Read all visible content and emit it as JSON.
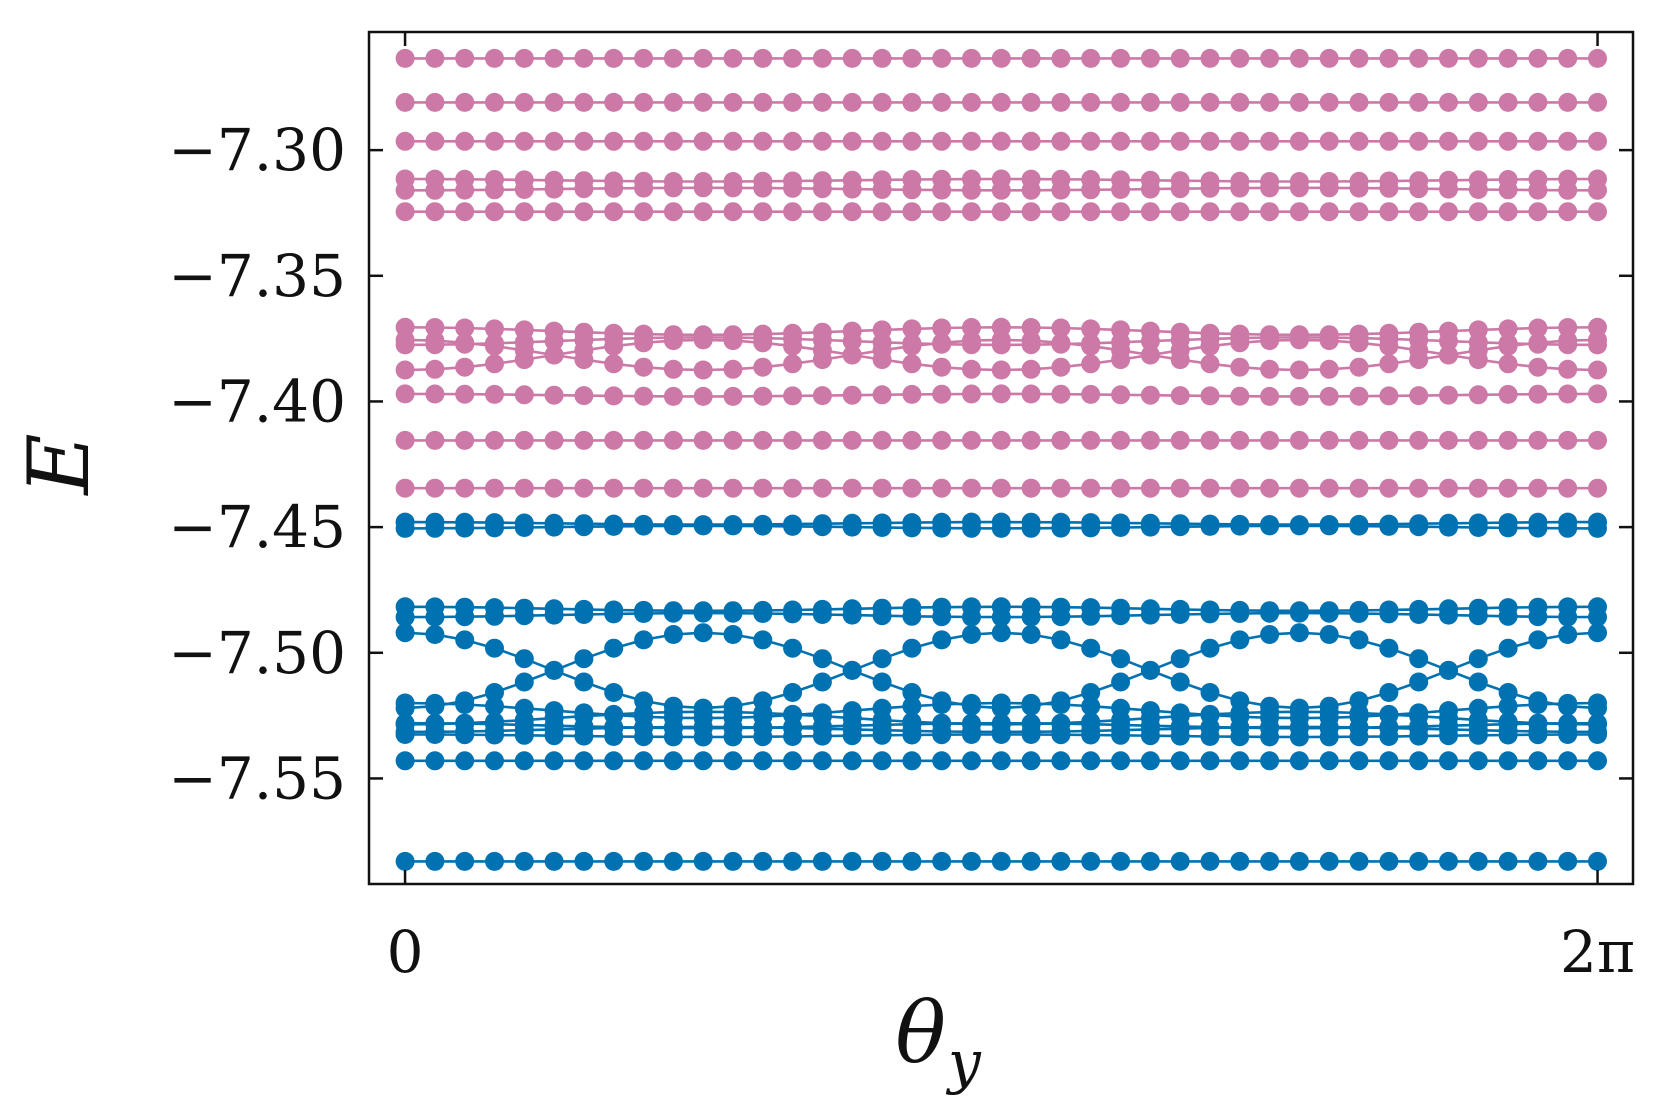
{
  "chart_data": {
    "type": "line",
    "title": "",
    "xlabel": "θ",
    "xlabel_subscript": "y",
    "ylabel": "E",
    "xlim": [
      -0.19,
      6.47
    ],
    "ylim": [
      -7.592,
      -7.253
    ],
    "x_ticks": [
      {
        "value": 0,
        "label": "0"
      },
      {
        "value": 6.2832,
        "label": "2π"
      }
    ],
    "y_ticks": [
      {
        "value": -7.3,
        "label": "−7.30"
      },
      {
        "value": -7.35,
        "label": "−7.35"
      },
      {
        "value": -7.4,
        "label": "−7.40"
      },
      {
        "value": -7.45,
        "label": "−7.45"
      },
      {
        "value": -7.5,
        "label": "−7.50"
      },
      {
        "value": -7.55,
        "label": "−7.55"
      }
    ],
    "grid": false,
    "legend": "none",
    "x_points": 41,
    "x_max": 6.2832,
    "colors": {
      "upper": "#cc79a7",
      "lower": "#0072b2"
    },
    "series": [
      {
        "group": "upper",
        "mean": -7.2635,
        "amp": 0,
        "phase": 0
      },
      {
        "group": "upper",
        "mean": -7.281,
        "amp": 0,
        "phase": 0
      },
      {
        "group": "upper",
        "mean": -7.2965,
        "amp": 0,
        "phase": 0
      },
      {
        "group": "upper",
        "mean": -7.312,
        "amp": 0.0005,
        "phase": 0
      },
      {
        "group": "upper",
        "mean": -7.3155,
        "amp": 0.0005,
        "phase": 3.1416
      },
      {
        "group": "upper",
        "mean": -7.3245,
        "amp": 0,
        "phase": 0
      },
      {
        "group": "upper",
        "mean": -7.372,
        "amp": 0.0015,
        "phase": 0
      },
      {
        "group": "upper",
        "mean": -7.376,
        "amp": 0.0015,
        "phase": 3.1416
      },
      {
        "group": "upper",
        "mean": -7.3815,
        "amp": 0.006,
        "phase": 0
      },
      {
        "group": "upper",
        "mean": -7.3815,
        "amp": 0.006,
        "phase": 3.1416
      },
      {
        "group": "upper",
        "mean": -7.3975,
        "amp": 0.0005,
        "phase": 0
      },
      {
        "group": "upper",
        "mean": -7.4155,
        "amp": 0,
        "phase": 0
      },
      {
        "group": "upper",
        "mean": -7.4345,
        "amp": 0,
        "phase": 0
      },
      {
        "group": "lower",
        "mean": -7.4485,
        "amp": 0.0005,
        "phase": 0
      },
      {
        "group": "lower",
        "mean": -7.45,
        "amp": 0.0005,
        "phase": 3.1416
      },
      {
        "group": "lower",
        "mean": -7.4825,
        "amp": 0.0008,
        "phase": 0
      },
      {
        "group": "lower",
        "mean": -7.485,
        "amp": 0.0008,
        "phase": 3.1416
      },
      {
        "group": "lower",
        "mean": -7.507,
        "amp": 0.015,
        "phase": 0
      },
      {
        "group": "lower",
        "mean": -7.507,
        "amp": 0.015,
        "phase": 3.1416
      },
      {
        "group": "lower",
        "mean": -7.523,
        "amp": 0.003,
        "phase": 0
      },
      {
        "group": "lower",
        "mean": -7.526,
        "amp": 0.0025,
        "phase": 3.1416
      },
      {
        "group": "lower",
        "mean": -7.529,
        "amp": 0.001,
        "phase": 0
      },
      {
        "group": "lower",
        "mean": -7.5305,
        "amp": 0.001,
        "phase": 3.1416
      },
      {
        "group": "lower",
        "mean": -7.533,
        "amp": 0.0005,
        "phase": 0
      },
      {
        "group": "lower",
        "mean": -7.543,
        "amp": 0,
        "phase": 0
      },
      {
        "group": "lower",
        "mean": -7.583,
        "amp": 0,
        "phase": 0
      }
    ]
  }
}
